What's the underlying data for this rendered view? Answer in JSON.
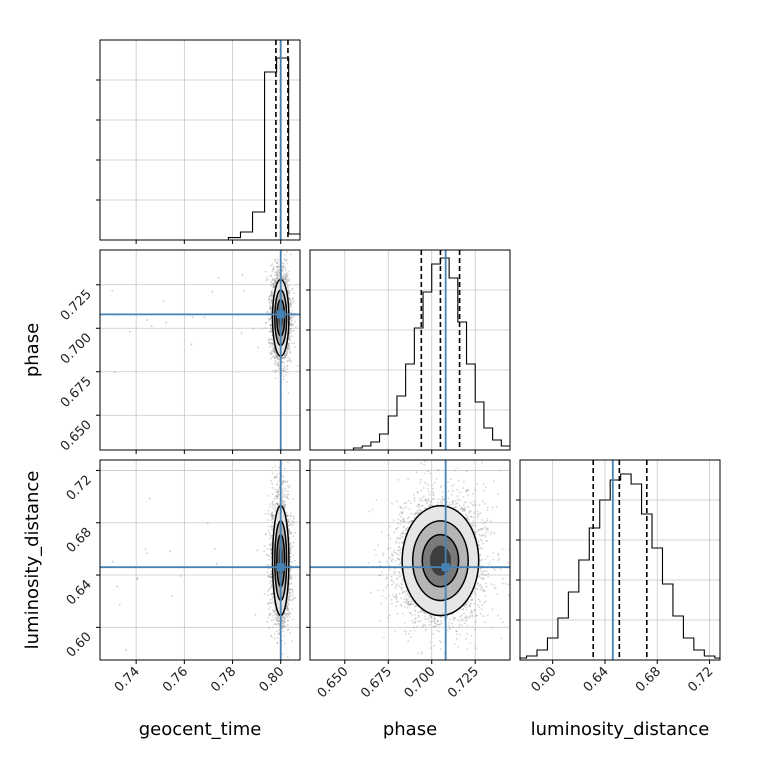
{
  "chart_data": {
    "type": "corner",
    "parameters": [
      "geocent_time",
      "phase",
      "luminosity_distance"
    ],
    "truths": {
      "geocent_time": 0.8,
      "phase": 0.708,
      "luminosity_distance": 0.646
    },
    "ranges": {
      "geocent_time": [
        0.725,
        0.808
      ],
      "phase": [
        0.63,
        0.745
      ],
      "luminosity_distance": [
        0.575,
        0.728
      ]
    },
    "ticks": {
      "geocent_time": [
        0.74,
        0.76,
        0.78,
        0.8
      ],
      "phase": [
        0.65,
        0.675,
        0.7,
        0.725
      ],
      "luminosity_distance": [
        0.6,
        0.64,
        0.68,
        0.72
      ]
    },
    "tick_labels": {
      "geocent_time": [
        "0.74",
        "0.76",
        "0.78",
        "0.80"
      ],
      "phase": [
        "0.650",
        "0.675",
        "0.700",
        "0.725"
      ],
      "luminosity_distance": [
        "0.60",
        "0.64",
        "0.68",
        "0.72"
      ]
    },
    "quantiles": {
      "geocent_time": [
        0.798,
        0.8,
        0.803
      ],
      "phase": [
        0.694,
        0.705,
        0.716
      ],
      "luminosity_distance": [
        0.631,
        0.651,
        0.672
      ]
    },
    "histograms": {
      "geocent_time": {
        "edges": [
          0.725,
          0.7783,
          0.7833,
          0.7883,
          0.7933,
          0.7983,
          0.8033,
          0.808
        ],
        "counts": [
          0,
          0.012,
          0.04,
          0.14,
          0.84,
          0.91,
          0.03
        ]
      },
      "phase": {
        "edges": [
          0.63,
          0.655,
          0.66,
          0.665,
          0.67,
          0.675,
          0.68,
          0.685,
          0.69,
          0.695,
          0.7,
          0.705,
          0.71,
          0.715,
          0.72,
          0.725,
          0.73,
          0.735,
          0.74,
          0.745
        ],
        "counts": [
          0,
          0.01,
          0.02,
          0.04,
          0.08,
          0.17,
          0.27,
          0.43,
          0.61,
          0.79,
          0.93,
          0.96,
          0.86,
          0.64,
          0.43,
          0.24,
          0.11,
          0.05,
          0.02
        ]
      },
      "luminosity_distance": {
        "edges": [
          0.575,
          0.58,
          0.588,
          0.596,
          0.604,
          0.612,
          0.62,
          0.628,
          0.636,
          0.644,
          0.652,
          0.66,
          0.668,
          0.676,
          0.684,
          0.692,
          0.7,
          0.708,
          0.716,
          0.724,
          0.728
        ],
        "counts": [
          0.01,
          0.02,
          0.05,
          0.11,
          0.21,
          0.34,
          0.5,
          0.66,
          0.8,
          0.9,
          0.93,
          0.88,
          0.73,
          0.56,
          0.38,
          0.22,
          0.11,
          0.05,
          0.02,
          0.01
        ]
      }
    },
    "pairs": [
      {
        "x": "geocent_time",
        "y": "phase",
        "center": [
          0.8,
          0.706
        ],
        "sd": [
          0.0017,
          0.011
        ],
        "points": 2500
      },
      {
        "x": "geocent_time",
        "y": "luminosity_distance",
        "center": [
          0.8,
          0.651
        ],
        "sd": [
          0.0017,
          0.021
        ],
        "points": 2500
      },
      {
        "x": "phase",
        "y": "luminosity_distance",
        "center": [
          0.705,
          0.651
        ],
        "sd": [
          0.011,
          0.021
        ],
        "points": 3500
      }
    ],
    "colors": {
      "truth": "#4682b4",
      "hist": "#000000",
      "grid": "#c8c8c8"
    }
  }
}
